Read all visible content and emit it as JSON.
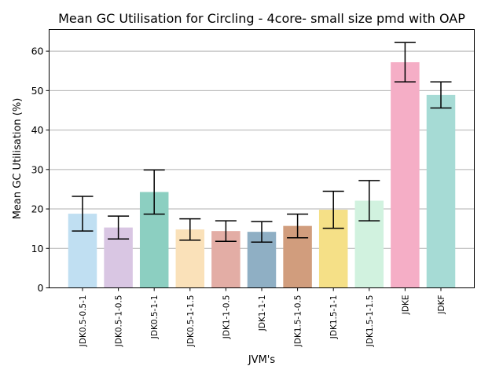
{
  "chart_data": {
    "type": "bar",
    "title": "Mean GC Utilisation for Circling - 4core- small size pmd with OAP",
    "xlabel": "JVM's",
    "ylabel": "Mean GC Utilisation (%)",
    "ylim": [
      0,
      65.5
    ],
    "yticks": [
      0,
      10,
      20,
      30,
      40,
      50,
      60
    ],
    "grid": "horizontal",
    "categories": [
      "JDK0.5-0.5-1",
      "JDK0.5-1-0.5",
      "JDK0.5-1-1",
      "JDK0.5-1-1.5",
      "JDK1-1-0.5",
      "JDK1-1-1",
      "JDK1.5-1-0.5",
      "JDK1.5-1-1",
      "JDK1.5-1-1.5",
      "JDKE",
      "JDKF"
    ],
    "values": [
      18.8,
      15.3,
      24.3,
      14.8,
      14.4,
      14.2,
      15.7,
      19.8,
      22.1,
      57.2,
      48.9
    ],
    "errors": [
      4.4,
      2.9,
      5.6,
      2.7,
      2.6,
      2.6,
      3.0,
      4.7,
      5.1,
      5.0,
      3.3
    ],
    "colors": [
      "#c0dff2",
      "#d9c6e3",
      "#8ccfc1",
      "#fae1b9",
      "#e3ada5",
      "#8fafc4",
      "#d19d7d",
      "#f5e087",
      "#d1f2df",
      "#f5aec6",
      "#a6dbd5"
    ]
  }
}
